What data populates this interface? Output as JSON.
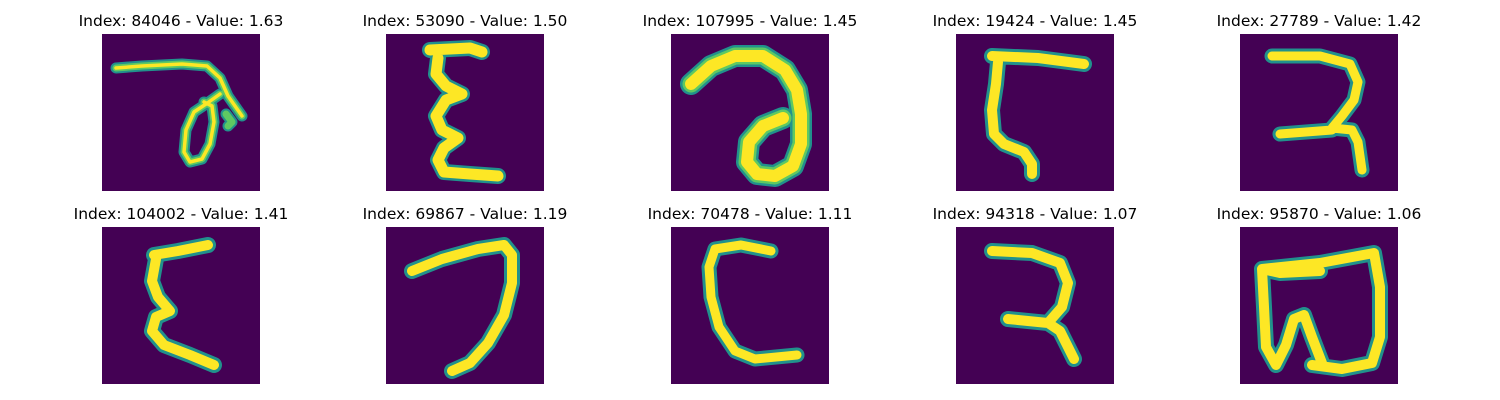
{
  "colors": {
    "background": "#440154",
    "stroke_outer": "#21918c",
    "stroke_mid": "#5ec962",
    "stroke_core": "#fde725"
  },
  "panels": [
    {
      "title": "Index: 84046 - Value: 1.63",
      "index": 84046,
      "value": 1.63,
      "glyph": "ba"
    },
    {
      "title": "Index: 53090 - Value: 1.50",
      "index": 53090,
      "value": 1.5,
      "glyph": "e-like"
    },
    {
      "title": "Index: 107995 - Value: 1.45",
      "index": 107995,
      "value": 1.45,
      "glyph": "ba-bold"
    },
    {
      "title": "Index: 19424 - Value: 1.45",
      "index": 19424,
      "value": 1.45,
      "glyph": "five-like"
    },
    {
      "title": "Index: 27789 - Value: 1.42",
      "index": 27789,
      "value": 1.42,
      "glyph": "ra-like"
    },
    {
      "title": "Index: 104002 - Value: 1.41",
      "index": 104002,
      "value": 1.41,
      "glyph": "e-like"
    },
    {
      "title": "Index: 69867 - Value: 1.19",
      "index": 69867,
      "value": 1.19,
      "glyph": "seven-like"
    },
    {
      "title": "Index: 70478 - Value: 1.11",
      "index": 70478,
      "value": 1.11,
      "glyph": "c-like"
    },
    {
      "title": "Index: 94318 - Value: 1.07",
      "index": 94318,
      "value": 1.07,
      "glyph": "ra-like"
    },
    {
      "title": "Index: 95870 - Value: 1.06",
      "index": 95870,
      "value": 1.06,
      "glyph": "box-like"
    }
  ]
}
